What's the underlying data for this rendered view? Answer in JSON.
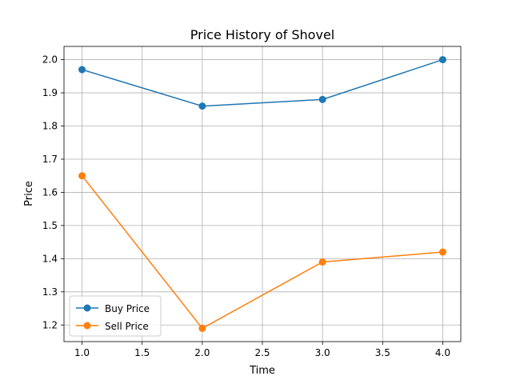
{
  "chart_data": {
    "type": "line",
    "title": "Price History of Shovel",
    "xlabel": "Time",
    "ylabel": "Price",
    "x": [
      1.0,
      2.0,
      3.0,
      4.0
    ],
    "xlim": [
      0.85,
      4.15
    ],
    "ylim": [
      1.15,
      2.04
    ],
    "x_ticks": [
      "1.0",
      "1.5",
      "2.0",
      "2.5",
      "3.0",
      "3.5",
      "4.0"
    ],
    "y_ticks": [
      "1.2",
      "1.3",
      "1.4",
      "1.5",
      "1.6",
      "1.7",
      "1.8",
      "1.9",
      "2.0"
    ],
    "grid": true,
    "legend_position": "bottom-left",
    "series": [
      {
        "name": "Buy Price",
        "color": "#1f77b4",
        "marker": "circle",
        "values": [
          1.97,
          1.86,
          1.88,
          2.0
        ]
      },
      {
        "name": "Sell Price",
        "color": "#ff7f0e",
        "marker": "circle",
        "values": [
          1.65,
          1.19,
          1.39,
          1.42
        ]
      }
    ]
  }
}
